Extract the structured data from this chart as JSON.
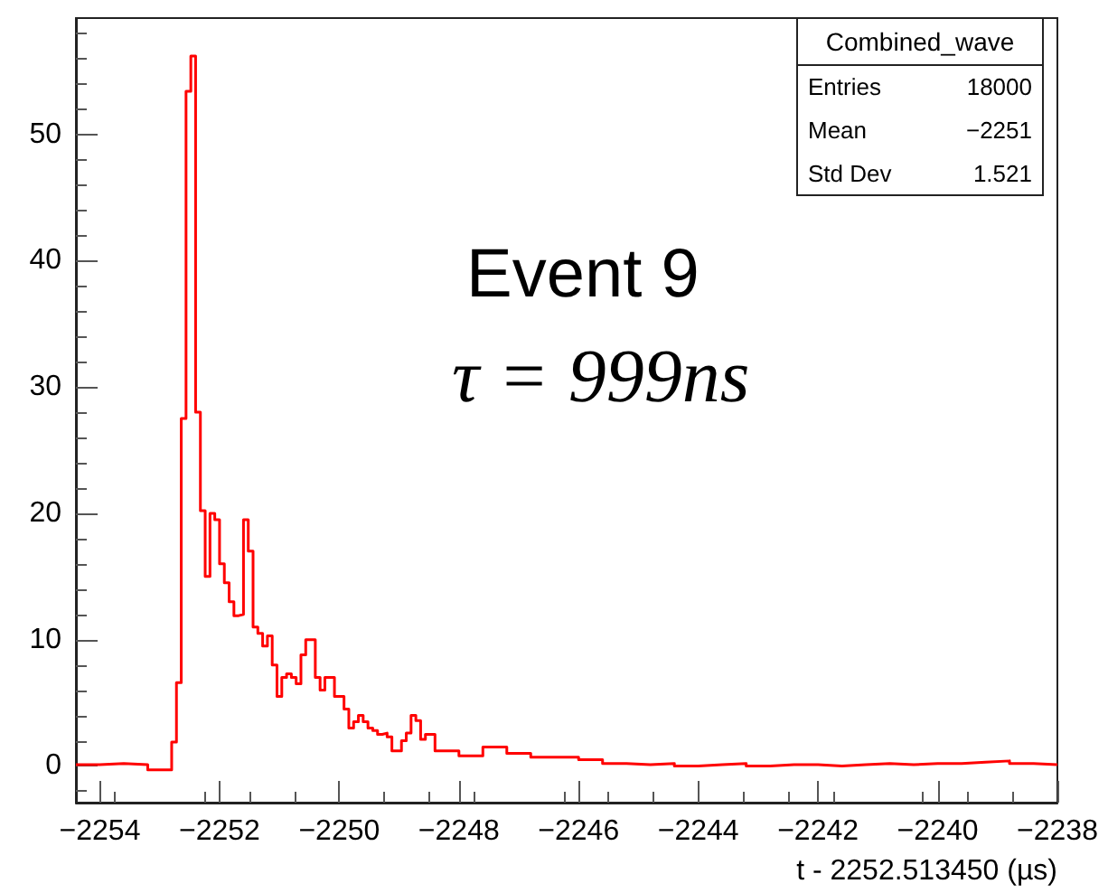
{
  "chart_data": {
    "type": "histogram",
    "xlabel": "t - 2252.513450 (µs)",
    "color": "#ff0000",
    "bins": [
      -2254.4,
      -2254,
      -2253.6,
      -2253.2,
      -2252.8,
      -2252.72,
      -2252.64,
      -2252.56,
      -2252.48,
      -2252.4,
      -2252.32,
      -2252.24,
      -2252.16,
      -2252.08,
      -2252,
      -2251.92,
      -2251.84,
      -2251.76,
      -2251.68,
      -2251.6,
      -2251.52,
      -2251.44,
      -2251.36,
      -2251.28,
      -2251.2,
      -2251.12,
      -2251.04,
      -2250.96,
      -2250.88,
      -2250.8,
      -2250.72,
      -2250.64,
      -2250.56,
      -2250.48,
      -2250.4,
      -2250.32,
      -2250.24,
      -2250.16,
      -2250.08,
      -2250,
      -2249.92,
      -2249.84,
      -2249.76,
      -2249.68,
      -2249.6,
      -2249.52,
      -2249.44,
      -2249.36,
      -2249.28,
      -2249.2,
      -2249.12,
      -2249.04,
      -2248.96,
      -2248.88,
      -2248.8,
      -2248.72,
      -2248.64,
      -2248.56,
      -2248.48,
      -2248.4,
      -2248,
      -2247.6,
      -2247.2,
      -2246.8,
      -2246.4,
      -2246,
      -2245.6,
      -2245.2,
      -2244.8,
      -2244.4,
      -2244,
      -2243.6,
      -2243.2,
      -2242.8,
      -2242.4,
      -2242,
      -2241.6,
      -2241.2,
      -2240.8,
      -2240.4,
      -2240,
      -2239.6,
      -2239.2,
      -2238.8,
      -2238.4,
      -2238
    ],
    "values": [
      0.1,
      0.2,
      0.1,
      -0.3,
      1.9,
      6.6,
      27.5,
      53.4,
      56.2,
      28,
      20.2,
      15,
      20,
      19.5,
      16,
      14.5,
      13,
      11.9,
      12,
      19.5,
      17,
      11,
      10.5,
      9.5,
      10.3,
      8,
      5.5,
      7,
      7.3,
      7,
      6.5,
      8.8,
      10,
      10,
      7,
      6,
      7,
      7,
      5.5,
      5.5,
      4.5,
      3,
      3.5,
      4,
      3.5,
      3,
      2.8,
      2.5,
      2.6,
      2.3,
      1.2,
      1.2,
      2,
      2.6,
      4,
      3.6,
      2.1,
      2.5,
      2.5,
      1.2,
      0.8,
      1.5,
      1,
      0.7,
      0.7,
      0.5,
      0.2,
      0.1,
      0.2,
      0,
      0.1,
      0.2,
      0,
      0.1,
      0.1,
      0,
      0.1,
      0.2,
      0.1,
      0.2,
      0.2,
      0.3,
      0.4,
      0.2,
      0.1
    ],
    "xlim": [
      -2254.4,
      -2238
    ],
    "xticks": [
      -2254,
      -2252,
      -2250,
      -2248,
      -2246,
      -2244,
      -2242,
      -2240,
      -2238
    ],
    "ylim": [
      -2.9,
      59.2
    ],
    "yticks": [
      0,
      10,
      20,
      30,
      40,
      50
    ],
    "annotations": [
      "Combined_wave",
      "Entries",
      "18000",
      "Mean",
      "−2251",
      "Std Dev",
      "1.521",
      "Event 9",
      "τ = 999ns"
    ]
  }
}
